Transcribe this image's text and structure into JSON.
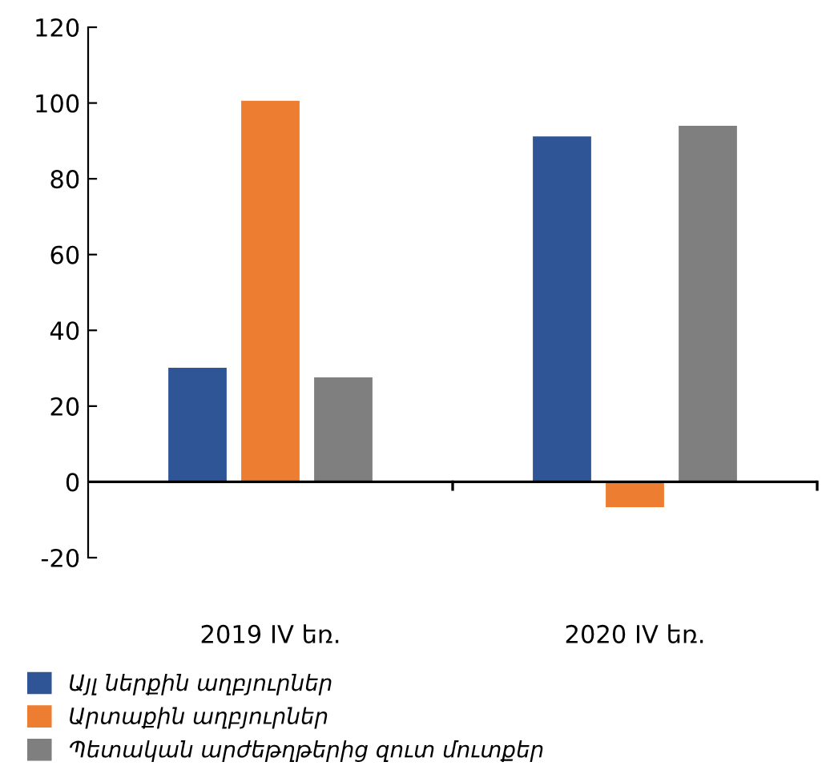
{
  "chart_data": {
    "type": "bar",
    "categories": [
      "2019 IV եռ.",
      "2020 IV եռ."
    ],
    "series": [
      {
        "name": "Այլ ներքին աղբյուրներ",
        "color": "#2f5597",
        "values": [
          30.1,
          91.2
        ]
      },
      {
        "name": "Արտաքին աղբյուրներ",
        "color": "#ed7d31",
        "values": [
          100.6,
          -6.7
        ]
      },
      {
        "name": "Պետական արժեթղթերից զուտ մուտքեր",
        "color": "#7f7f7f",
        "values": [
          27.6,
          94
        ]
      }
    ],
    "ylim": [
      -20,
      120
    ],
    "yticks": [
      -20,
      0,
      20,
      40,
      60,
      80,
      100,
      120
    ],
    "legend": "bottom left"
  }
}
